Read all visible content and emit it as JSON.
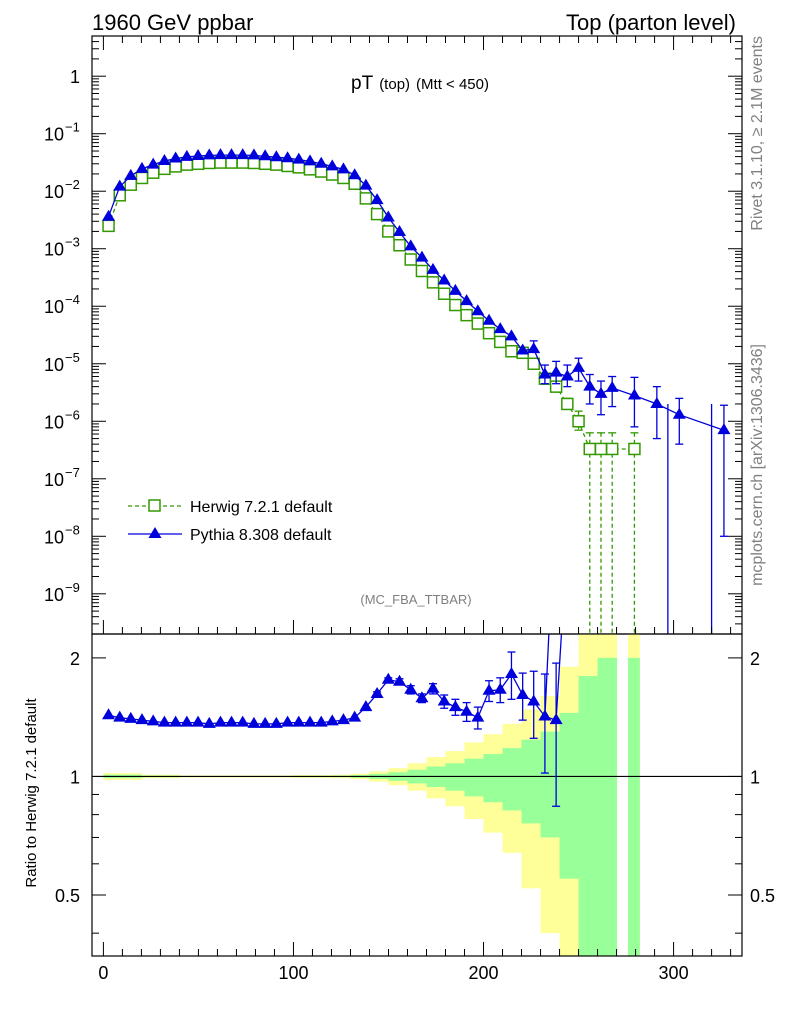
{
  "header": {
    "left": "1960 GeV ppbar",
    "right": "Top (parton level)"
  },
  "side_labels": {
    "rivet": "Rivet 3.1.10, ≥ 2.1M events",
    "mcplots": "mcplots.cern.ch [arXiv:1306.3436]"
  },
  "colors": {
    "herwig": "#339900",
    "pythia": "#0000dd",
    "band_inner": "#99ff99",
    "band_outer": "#ffff99"
  },
  "chart_data": [
    {
      "type": "line",
      "title_main": "pT",
      "title_sub": "(top)",
      "title_cut": "(Mtt < 450)",
      "annotation": "(MC_FBA_TTBAR)",
      "yscale": "log",
      "ylim": [
        2e-10,
        5
      ],
      "xlim": [
        -6,
        336
      ],
      "ytick_labels": [
        "1",
        "10",
        "10",
        "10",
        "10",
        "10",
        "10",
        "10",
        "10",
        "10"
      ],
      "ytick_exponents": [
        "",
        "−1",
        "−2",
        "−3",
        "−4",
        "−5",
        "−6",
        "−7",
        "−8",
        "−9"
      ],
      "legend": {
        "placement": "bottom-left",
        "entries": [
          "Herwig 7.2.1 default",
          "Pythia 8.308 default"
        ]
      },
      "series": [
        {
          "name": "Herwig 7.2.1 default",
          "style": "open-square-dashed",
          "x": [
            2.7,
            8.6,
            14.4,
            20.3,
            26.2,
            32.1,
            38.0,
            43.9,
            49.8,
            55.7,
            61.6,
            67.4,
            73.3,
            79.2,
            85.1,
            91.0,
            96.9,
            102.8,
            108.7,
            114.6,
            120.4,
            126.3,
            132.2,
            138.1,
            144.0,
            149.9,
            155.8,
            161.7,
            167.6,
            173.4,
            179.3,
            185.2,
            191.1,
            197.0,
            202.9,
            208.8,
            214.7,
            220.6,
            226.4,
            232.3,
            238.2,
            244.1,
            250.0,
            255.9,
            261.8,
            267.7,
            279.4
          ],
          "y": [
            0.0025,
            0.0085,
            0.013,
            0.017,
            0.021,
            0.0245,
            0.027,
            0.029,
            0.03,
            0.031,
            0.0315,
            0.0315,
            0.0315,
            0.031,
            0.03,
            0.029,
            0.0275,
            0.026,
            0.024,
            0.022,
            0.0195,
            0.017,
            0.0135,
            0.0075,
            0.004,
            0.002,
            0.00115,
            0.00065,
            0.00041,
            0.00026,
            0.000165,
            0.000105,
            7e-05,
            5e-05,
            3.4e-05,
            2.4e-05,
            1.65e-05,
            1.55e-05,
            1e-05,
            5.5e-06,
            4e-06,
            2e-06,
            1e-06,
            3.3e-07,
            3.3e-07,
            3.3e-07,
            3.3e-07
          ],
          "yerr_low": [
            0,
            0,
            0,
            0,
            0,
            0,
            0,
            0,
            0,
            0,
            0,
            0,
            0,
            0,
            0,
            0,
            0,
            0,
            0,
            0,
            0,
            0,
            0,
            0,
            0,
            0,
            0,
            0,
            0,
            0,
            0,
            0,
            0,
            0,
            0,
            0,
            0,
            0,
            0,
            0,
            0,
            0,
            3e-07,
            3.3e-07,
            3.3e-07,
            3.3e-07,
            3.3e-07
          ],
          "yerr_high": [
            0,
            0,
            0,
            0,
            0,
            0,
            0,
            0,
            0,
            0,
            0,
            0,
            0,
            0,
            0,
            0,
            0,
            0,
            0,
            0,
            0,
            0,
            0,
            0,
            0,
            0,
            0,
            0,
            0,
            0,
            0,
            0,
            0,
            0,
            0,
            0,
            0,
            0,
            0,
            0,
            0,
            5e-07,
            5e-07,
            3e-07,
            3e-07,
            3e-07,
            3e-07
          ]
        },
        {
          "name": "Pythia 8.308 default",
          "style": "filled-triangle-solid",
          "x": [
            2.7,
            8.6,
            14.4,
            20.3,
            26.2,
            32.1,
            38.0,
            43.9,
            49.8,
            55.7,
            61.6,
            67.4,
            73.3,
            79.2,
            85.1,
            91.0,
            96.9,
            102.8,
            108.7,
            114.6,
            120.4,
            126.3,
            132.2,
            138.1,
            144.0,
            149.9,
            155.8,
            161.7,
            167.6,
            173.4,
            179.3,
            185.2,
            191.1,
            197.0,
            202.9,
            208.8,
            214.7,
            220.6,
            226.4,
            232.3,
            238.2,
            244.1,
            250.0,
            255.9,
            261.8,
            267.7,
            279.4,
            291.2,
            303.0,
            326.5
          ],
          "y": [
            0.0036,
            0.012,
            0.0185,
            0.0245,
            0.029,
            0.0335,
            0.037,
            0.0395,
            0.041,
            0.042,
            0.0425,
            0.0425,
            0.0425,
            0.042,
            0.0405,
            0.039,
            0.0375,
            0.0355,
            0.033,
            0.03,
            0.027,
            0.024,
            0.019,
            0.0125,
            0.007,
            0.0035,
            0.00195,
            0.0011,
            0.0007,
            0.00043,
            0.00028,
            0.000185,
            0.000123,
            8.2e-05,
            5.6e-05,
            4e-05,
            3e-05,
            1.7e-05,
            1.8e-05,
            6.5e-06,
            7e-06,
            6e-06,
            8.5e-06,
            4e-06,
            3e-06,
            3.8e-06,
            2.8e-06,
            2e-06,
            1.3e-06,
            7e-07
          ],
          "yerr_low": [
            0,
            0,
            0,
            0,
            0,
            0,
            0,
            0,
            0,
            0,
            0,
            0,
            0,
            0,
            0,
            0,
            0,
            0,
            0,
            0,
            0,
            0,
            0,
            0,
            0,
            0,
            0,
            0,
            0,
            0,
            0,
            0,
            0,
            0,
            0,
            0,
            0,
            0,
            0,
            2e-06,
            2.5e-06,
            2e-06,
            3.5e-06,
            2e-06,
            1.7e-06,
            2e-06,
            2e-06,
            1.5e-06,
            9e-07,
            6.9e-07
          ],
          "yerr_high": [
            0,
            0,
            0,
            0,
            0,
            0,
            0,
            0,
            0,
            0,
            0,
            0,
            0,
            0,
            0,
            0,
            0,
            0,
            0,
            0,
            0,
            0,
            0,
            0,
            0,
            0,
            0,
            0,
            0,
            0,
            0,
            0,
            0,
            0,
            0,
            0,
            0,
            0,
            7e-06,
            3e-06,
            4e-06,
            3.5e-06,
            4e-06,
            2.5e-06,
            2e-06,
            2.2e-06,
            3e-06,
            2e-06,
            1.2e-06,
            1.2e-06
          ]
        }
      ]
    },
    {
      "type": "line",
      "ylabel": "Ratio to Herwig 7.2.1 default",
      "ylim": [
        0.35,
        2.3
      ],
      "yticks": [
        0.5,
        1,
        2
      ],
      "ytick_labels": [
        "0.5",
        "1",
        "2"
      ],
      "xlim": [
        -6,
        336
      ],
      "xticks": [
        0,
        100,
        200,
        300
      ],
      "xtick_labels": [
        "0",
        "100",
        "200",
        "300"
      ],
      "reference_line": 1,
      "uncertainty_bands": {
        "x_edges": [
          0,
          20,
          40,
          60,
          80,
          100,
          120,
          130,
          140,
          150,
          160,
          170,
          180,
          190,
          200,
          210,
          220,
          230,
          240,
          250,
          260,
          270,
          276,
          282
        ],
        "inner": [
          0.01,
          0.005,
          0.003,
          0.003,
          0.003,
          0.004,
          0.005,
          0.008,
          0.015,
          0.025,
          0.04,
          0.06,
          0.08,
          0.11,
          0.14,
          0.18,
          0.24,
          0.3,
          0.45,
          0.8,
          1.0,
          null,
          1.0
        ],
        "outer": [
          0.02,
          0.01,
          0.006,
          0.006,
          0.006,
          0.008,
          0.01,
          0.016,
          0.03,
          0.05,
          0.08,
          0.12,
          0.16,
          0.22,
          0.28,
          0.36,
          0.48,
          0.6,
          0.9,
          1.4,
          1.6,
          null,
          1.6
        ]
      },
      "series": [
        {
          "name": "Pythia 8.308 default",
          "x": [
            2.7,
            8.6,
            14.4,
            20.3,
            26.2,
            32.1,
            38.0,
            43.9,
            49.8,
            55.7,
            61.6,
            67.4,
            73.3,
            79.2,
            85.1,
            91.0,
            96.9,
            102.8,
            108.7,
            114.6,
            120.4,
            126.3,
            132.2,
            138.1,
            144.0,
            149.9,
            155.8,
            161.7,
            167.6,
            173.4,
            179.3,
            185.2,
            191.1,
            197.0,
            202.9,
            208.8,
            214.7,
            220.6,
            226.4,
            232.3,
            238.2,
            244.1
          ],
          "y": [
            1.43,
            1.41,
            1.4,
            1.39,
            1.38,
            1.37,
            1.37,
            1.37,
            1.37,
            1.36,
            1.37,
            1.37,
            1.37,
            1.36,
            1.36,
            1.36,
            1.37,
            1.37,
            1.37,
            1.37,
            1.38,
            1.39,
            1.41,
            1.5,
            1.62,
            1.76,
            1.74,
            1.66,
            1.58,
            1.67,
            1.55,
            1.5,
            1.46,
            1.41,
            1.65,
            1.66,
            1.82,
            1.61,
            1.55,
            1.42,
            1.39,
            4.0
          ],
          "yerr_low": [
            0,
            0,
            0,
            0,
            0,
            0,
            0,
            0,
            0,
            0,
            0,
            0,
            0,
            0,
            0,
            0,
            0,
            0,
            0,
            0,
            0,
            0,
            0,
            0,
            0.02,
            0.02,
            0.03,
            0.04,
            0.04,
            0.05,
            0.06,
            0.07,
            0.08,
            0.09,
            0.1,
            0.12,
            0.25,
            0.22,
            0.3,
            0.4,
            0.55,
            0
          ],
          "yerr_high": [
            0,
            0,
            0,
            0,
            0,
            0,
            0,
            0,
            0,
            0,
            0,
            0,
            0,
            0,
            0,
            0,
            0,
            0,
            0,
            0,
            0,
            0,
            0,
            0,
            0.02,
            0.02,
            0.03,
            0.04,
            0.04,
            0.05,
            0.06,
            0.07,
            0.08,
            0.09,
            0.1,
            0.12,
            0.25,
            0.22,
            0.3,
            0.4,
            0.55,
            0
          ]
        }
      ]
    }
  ]
}
